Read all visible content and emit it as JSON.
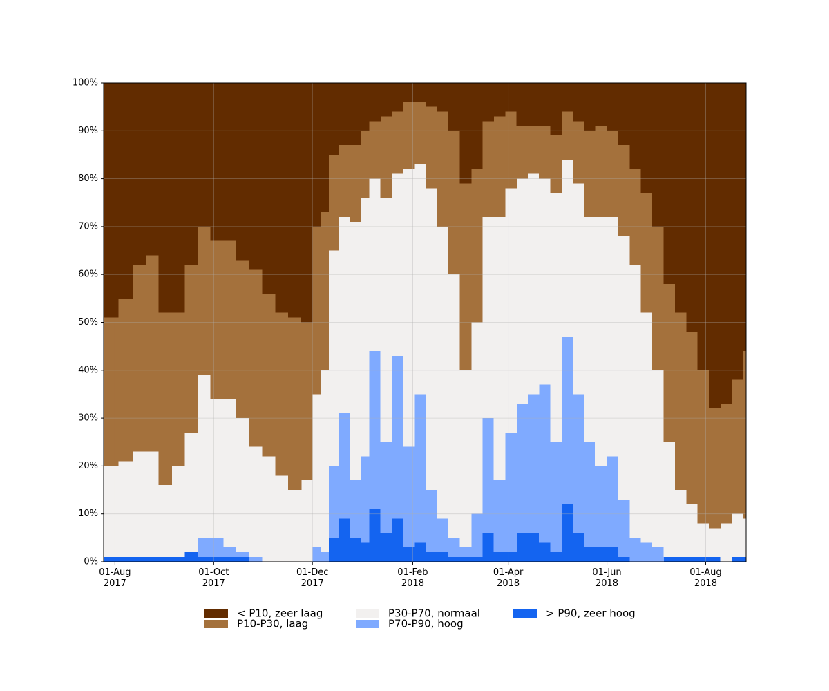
{
  "chart_data": {
    "type": "stacked_area_step",
    "x": [
      "2017-07-25",
      "2017-08-03",
      "2017-08-12",
      "2017-08-20",
      "2017-08-28",
      "2017-09-05",
      "2017-09-13",
      "2017-09-21",
      "2017-09-29",
      "2017-10-07",
      "2017-10-15",
      "2017-10-23",
      "2017-10-31",
      "2017-11-08",
      "2017-11-16",
      "2017-11-24",
      "2017-12-01",
      "2017-12-06",
      "2017-12-11",
      "2017-12-17",
      "2017-12-24",
      "2017-12-31",
      "2018-01-05",
      "2018-01-12",
      "2018-01-19",
      "2018-01-26",
      "2018-02-02",
      "2018-02-09",
      "2018-02-16",
      "2018-02-23",
      "2018-03-02",
      "2018-03-09",
      "2018-03-16",
      "2018-03-23",
      "2018-03-30",
      "2018-04-06",
      "2018-04-13",
      "2018-04-20",
      "2018-04-27",
      "2018-05-04",
      "2018-05-11",
      "2018-05-18",
      "2018-05-25",
      "2018-06-01",
      "2018-06-08",
      "2018-06-15",
      "2018-06-22",
      "2018-06-29",
      "2018-07-06",
      "2018-07-13",
      "2018-07-20",
      "2018-07-27",
      "2018-08-03",
      "2018-08-10",
      "2018-08-17",
      "2018-08-24"
    ],
    "series": [
      {
        "name": "< P10, zeer laag",
        "color": "#622c00",
        "values": [
          49,
          45,
          38,
          36,
          48,
          48,
          38,
          30,
          33,
          33,
          37,
          39,
          44,
          48,
          49,
          50,
          30,
          27,
          15,
          13,
          13,
          10,
          8,
          7,
          6,
          4,
          4,
          5,
          6,
          10,
          21,
          18,
          8,
          7,
          6,
          9,
          9,
          9,
          11,
          6,
          8,
          10,
          9,
          10,
          13,
          18,
          23,
          30,
          42,
          48,
          52,
          60,
          68,
          67,
          62,
          56
        ]
      },
      {
        "name": "P10-P30, laag",
        "color": "#a4713c",
        "values": [
          31,
          34,
          39,
          41,
          36,
          32,
          35,
          31,
          33,
          33,
          33,
          37,
          34,
          34,
          36,
          33,
          35,
          33,
          20,
          15,
          16,
          14,
          12,
          17,
          13,
          14,
          13,
          17,
          24,
          30,
          39,
          32,
          20,
          21,
          16,
          11,
          10,
          11,
          12,
          10,
          13,
          18,
          19,
          18,
          19,
          20,
          25,
          30,
          33,
          37,
          36,
          32,
          25,
          25,
          28,
          35
        ]
      },
      {
        "name": "P30-P70, normaal",
        "color": "#f2f0ef",
        "values": [
          19,
          20,
          22,
          22,
          15,
          19,
          25,
          34,
          29,
          31,
          28,
          23,
          22,
          18,
          15,
          17,
          32,
          38,
          45,
          41,
          54,
          54,
          36,
          51,
          38,
          58,
          48,
          63,
          61,
          55,
          37,
          40,
          42,
          55,
          51,
          47,
          46,
          43,
          52,
          37,
          44,
          47,
          52,
          50,
          55,
          57,
          48,
          37,
          24,
          14,
          11,
          7,
          6,
          8,
          9,
          8
        ]
      },
      {
        "name": "P70-P90, hoog",
        "color": "#7faaff",
        "values": [
          0,
          0,
          0,
          0,
          0,
          0,
          0,
          4,
          4,
          2,
          1,
          1,
          0,
          0,
          0,
          0,
          3,
          2,
          15,
          22,
          12,
          18,
          33,
          19,
          34,
          21,
          31,
          13,
          7,
          4,
          2,
          9,
          24,
          15,
          25,
          27,
          29,
          33,
          23,
          35,
          29,
          22,
          17,
          19,
          12,
          5,
          4,
          3,
          0,
          0,
          0,
          0,
          0,
          0,
          0,
          0
        ]
      },
      {
        "name": "> P90, zeer hoog",
        "color": "#1464f0",
        "values": [
          1,
          1,
          1,
          1,
          1,
          1,
          2,
          1,
          1,
          1,
          1,
          0,
          0,
          0,
          0,
          0,
          0,
          0,
          5,
          9,
          5,
          4,
          11,
          6,
          9,
          3,
          4,
          2,
          2,
          1,
          1,
          1,
          6,
          2,
          2,
          6,
          6,
          4,
          2,
          12,
          6,
          3,
          3,
          3,
          1,
          0,
          0,
          0,
          1,
          1,
          1,
          1,
          1,
          0,
          1,
          1
        ]
      }
    ],
    "xlim": [
      "2017-07-25",
      "2018-08-26"
    ],
    "xticks": [
      {
        "value": "2017-08-01",
        "label": "01-Aug\n2017"
      },
      {
        "value": "2017-10-01",
        "label": "01-Oct\n2017"
      },
      {
        "value": "2017-12-01",
        "label": "01-Dec\n2017"
      },
      {
        "value": "2018-02-01",
        "label": "01-Feb\n2018"
      },
      {
        "value": "2018-04-01",
        "label": "01-Apr\n2018"
      },
      {
        "value": "2018-06-01",
        "label": "01-Jun\n2018"
      },
      {
        "value": "2018-08-01",
        "label": "01-Aug\n2018"
      }
    ],
    "ylim": [
      0,
      100
    ],
    "yticks": [
      {
        "value": 0,
        "label": "0%"
      },
      {
        "value": 10,
        "label": "10%"
      },
      {
        "value": 20,
        "label": "20%"
      },
      {
        "value": 30,
        "label": "30%"
      },
      {
        "value": 40,
        "label": "40%"
      },
      {
        "value": 50,
        "label": "50%"
      },
      {
        "value": 60,
        "label": "60%"
      },
      {
        "value": 70,
        "label": "70%"
      },
      {
        "value": 80,
        "label": "80%"
      },
      {
        "value": 90,
        "label": "90%"
      },
      {
        "value": 100,
        "label": "100%"
      }
    ],
    "grid": true,
    "legend": "lower center"
  }
}
